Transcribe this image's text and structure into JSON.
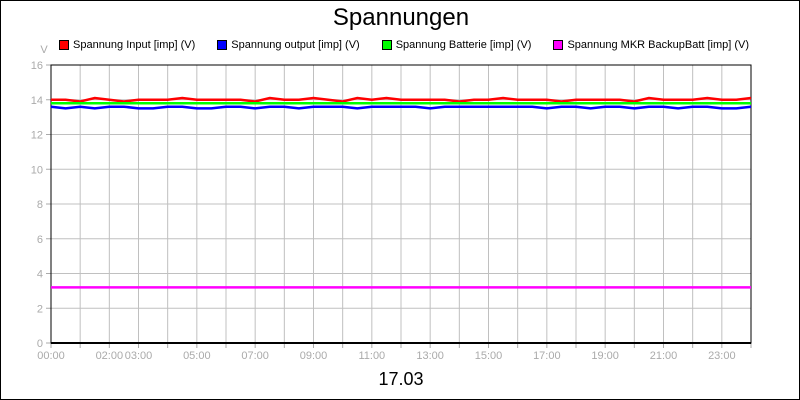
{
  "chart_data": {
    "type": "line",
    "title": "Spannungen",
    "xlabel": "17.03",
    "ylabel": "V",
    "ylim": [
      0,
      16
    ],
    "yticks": [
      0,
      2,
      4,
      6,
      8,
      10,
      12,
      14,
      16
    ],
    "xlim_hours": [
      0,
      24
    ],
    "xtick_labels": [
      {
        "hour": 0,
        "label": "00:00"
      },
      {
        "hour": 2,
        "label": "02:00"
      },
      {
        "hour": 3,
        "label": "03:00"
      },
      {
        "hour": 5,
        "label": "05:00"
      },
      {
        "hour": 7,
        "label": "07:00"
      },
      {
        "hour": 9,
        "label": "09:00"
      },
      {
        "hour": 11,
        "label": "11:00"
      },
      {
        "hour": 13,
        "label": "13:00"
      },
      {
        "hour": 15,
        "label": "15:00"
      },
      {
        "hour": 17,
        "label": "17:00"
      },
      {
        "hour": 19,
        "label": "19:00"
      },
      {
        "hour": 21,
        "label": "21:00"
      },
      {
        "hour": 23,
        "label": "23:00"
      }
    ],
    "grid": true,
    "legend_position": "top",
    "x_hours": [
      0,
      0.5,
      1,
      1.5,
      2,
      2.5,
      3,
      3.5,
      4,
      4.5,
      5,
      5.5,
      6,
      6.5,
      7,
      7.5,
      8,
      8.5,
      9,
      9.5,
      10,
      10.5,
      11,
      11.5,
      12,
      12.5,
      13,
      13.5,
      14,
      14.5,
      15,
      15.5,
      16,
      16.5,
      17,
      17.5,
      18,
      18.5,
      19,
      19.5,
      20,
      20.5,
      21,
      21.5,
      22,
      22.5,
      23,
      23.5,
      24
    ],
    "series": [
      {
        "name": "Spannung Input [imp] (V)",
        "color": "#ff0000",
        "values": [
          14.0,
          14.0,
          13.9,
          14.1,
          14.0,
          13.9,
          14.0,
          14.0,
          14.0,
          14.1,
          14.0,
          14.0,
          14.0,
          14.0,
          13.9,
          14.1,
          14.0,
          14.0,
          14.1,
          14.0,
          13.9,
          14.1,
          14.0,
          14.1,
          14.0,
          14.0,
          14.0,
          14.0,
          13.9,
          14.0,
          14.0,
          14.1,
          14.0,
          14.0,
          14.0,
          13.9,
          14.0,
          14.0,
          14.0,
          14.0,
          13.9,
          14.1,
          14.0,
          14.0,
          14.0,
          14.1,
          14.0,
          14.0,
          14.1
        ]
      },
      {
        "name": "Spannung output [imp] (V)",
        "color": "#0000ff",
        "values": [
          13.6,
          13.5,
          13.6,
          13.5,
          13.6,
          13.6,
          13.5,
          13.5,
          13.6,
          13.6,
          13.5,
          13.5,
          13.6,
          13.6,
          13.5,
          13.6,
          13.6,
          13.5,
          13.6,
          13.6,
          13.6,
          13.5,
          13.6,
          13.6,
          13.6,
          13.6,
          13.5,
          13.6,
          13.6,
          13.6,
          13.6,
          13.6,
          13.6,
          13.6,
          13.5,
          13.6,
          13.6,
          13.5,
          13.6,
          13.6,
          13.5,
          13.6,
          13.6,
          13.5,
          13.6,
          13.6,
          13.5,
          13.5,
          13.6
        ]
      },
      {
        "name": "Spannung Batterie [imp] (V)",
        "color": "#00ff00",
        "values": [
          13.8,
          13.8,
          13.8,
          13.8,
          13.8,
          13.8,
          13.8,
          13.8,
          13.8,
          13.8,
          13.8,
          13.8,
          13.8,
          13.8,
          13.8,
          13.8,
          13.8,
          13.8,
          13.8,
          13.8,
          13.8,
          13.8,
          13.8,
          13.8,
          13.8,
          13.8,
          13.8,
          13.8,
          13.8,
          13.8,
          13.8,
          13.8,
          13.8,
          13.8,
          13.8,
          13.8,
          13.8,
          13.8,
          13.8,
          13.8,
          13.8,
          13.8,
          13.8,
          13.8,
          13.8,
          13.8,
          13.8,
          13.8,
          13.8
        ]
      },
      {
        "name": "Spannung MKR BackupBatt [imp] (V)",
        "color": "#ff00ff",
        "values": [
          3.2,
          3.2,
          3.2,
          3.2,
          3.2,
          3.2,
          3.2,
          3.2,
          3.2,
          3.2,
          3.2,
          3.2,
          3.2,
          3.2,
          3.2,
          3.2,
          3.2,
          3.2,
          3.2,
          3.2,
          3.2,
          3.2,
          3.2,
          3.2,
          3.2,
          3.2,
          3.2,
          3.2,
          3.2,
          3.2,
          3.2,
          3.2,
          3.2,
          3.2,
          3.2,
          3.2,
          3.2,
          3.2,
          3.2,
          3.2,
          3.2,
          3.2,
          3.2,
          3.2,
          3.2,
          3.2,
          3.2,
          3.2,
          3.2
        ]
      }
    ]
  }
}
